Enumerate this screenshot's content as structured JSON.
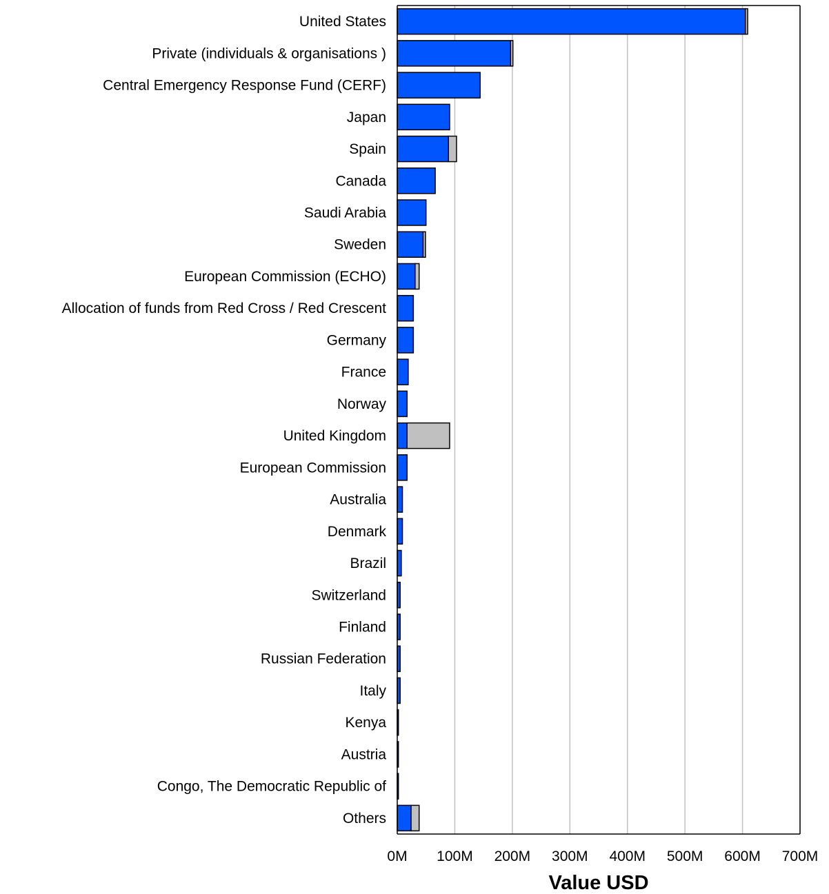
{
  "chart_data": {
    "type": "bar",
    "orientation": "horizontal",
    "stacked": true,
    "xlabel": "Value USD",
    "ylabel": "",
    "xlim": [
      0,
      700
    ],
    "x_unit": "M USD",
    "x_ticks": [
      "0M",
      "100M",
      "200M",
      "300M",
      "400M",
      "500M",
      "600M",
      "700M"
    ],
    "grid": true,
    "categories": [
      "United States",
      "Private (individuals & organisations )",
      "Central Emergency Response Fund (CERF)",
      "Japan",
      "Spain",
      "Canada",
      "Saudi Arabia",
      "Sweden",
      "European Commission (ECHO)",
      "Allocation of funds from Red Cross / Red Crescent",
      "Germany",
      "France",
      "Norway",
      "United Kingdom",
      "European Commission",
      "Australia",
      "Denmark",
      "Brazil",
      "Switzerland",
      "Finland",
      "Russian Federation",
      "Italy",
      "Kenya",
      "Austria",
      "Congo, The Democratic Republic of",
      "Others"
    ],
    "series": [
      {
        "color": "#0055ff",
        "values": [
          605,
          197,
          144,
          91,
          89,
          66,
          50,
          45,
          31,
          28,
          28,
          19,
          17,
          17,
          17,
          9,
          9,
          7,
          5,
          5,
          5,
          5,
          2,
          2,
          2,
          24
        ]
      },
      {
        "color": "#c0c0c0",
        "values": [
          4,
          4,
          0,
          0,
          14,
          0,
          0,
          4,
          7,
          0,
          0,
          0,
          0,
          74,
          0,
          0,
          0,
          0,
          0,
          0,
          0,
          0,
          0,
          0,
          0,
          14
        ]
      }
    ]
  }
}
